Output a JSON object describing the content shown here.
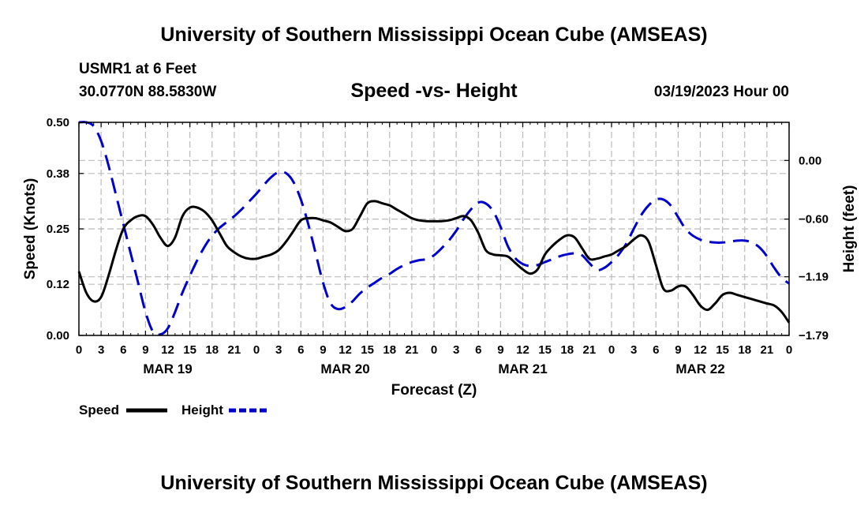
{
  "page": {
    "title": "University of Southern Mississippi Ocean Cube (AMSEAS)",
    "footer_title": "University of Southern Mississippi Ocean Cube (AMSEAS)",
    "station": "USMR1 at 6 Feet",
    "location": "30.0770N  88.5830W",
    "subtitle": "Speed -vs- Height",
    "datetime": "03/19/2023 Hour 00"
  },
  "colors": {
    "speed": "#000000",
    "height": "#0000cc",
    "grid": "#bbbbbb"
  },
  "chart_data": {
    "type": "line",
    "title": "Speed -vs- Height",
    "xlabel": "Forecast (Z)",
    "ylabel": "Speed (Knots)",
    "y2label": "Height (feet)",
    "xlim": [
      0,
      96
    ],
    "ylim": [
      0,
      0.5
    ],
    "y2lim": [
      -1.79,
      0.39
    ],
    "y_ticks": [
      0.0,
      0.12,
      0.25,
      0.38,
      0.5
    ],
    "y_tick_labels": [
      "0.00",
      "0.12",
      "0.25",
      "0.38",
      "0.50"
    ],
    "y2_ticks": [
      -1.79,
      -1.19,
      -0.6,
      0.0
    ],
    "y2_tick_labels": [
      "−1.79",
      "−1.19",
      "−0.60",
      "0.00"
    ],
    "x_ticks": [
      0,
      3,
      6,
      9,
      12,
      15,
      18,
      21,
      24,
      27,
      30,
      33,
      36,
      39,
      42,
      45,
      48,
      51,
      54,
      57,
      60,
      63,
      66,
      69,
      72,
      75,
      78,
      81,
      84,
      87,
      90,
      93,
      96
    ],
    "x_tick_labels": [
      "0",
      "3",
      "6",
      "9",
      "12",
      "15",
      "18",
      "21",
      "0",
      "3",
      "6",
      "9",
      "12",
      "15",
      "18",
      "21",
      "0",
      "3",
      "6",
      "9",
      "12",
      "15",
      "18",
      "21",
      "0",
      "3",
      "6",
      "9",
      "12",
      "15",
      "18",
      "21",
      "0"
    ],
    "day_labels": [
      {
        "x": 12,
        "label": "MAR 19"
      },
      {
        "x": 36,
        "label": "MAR 20"
      },
      {
        "x": 60,
        "label": "MAR 21"
      },
      {
        "x": 84,
        "label": "MAR 22"
      }
    ],
    "grid": true,
    "series": [
      {
        "name": "Speed",
        "axis": "left",
        "style": "solid",
        "color": "#000000",
        "x": [
          0,
          1,
          2,
          3,
          4,
          5,
          6,
          7,
          8,
          9,
          10,
          11,
          12,
          13,
          14,
          15,
          16,
          17,
          18,
          19,
          20,
          21,
          22,
          23,
          24,
          25,
          26,
          27,
          28,
          29,
          30,
          31,
          32,
          33,
          34,
          35,
          36,
          37,
          38,
          39,
          40,
          41,
          42,
          43,
          44,
          45,
          46,
          47,
          48,
          49,
          50,
          51,
          52,
          53,
          54,
          55,
          56,
          57,
          58,
          59,
          60,
          61,
          62,
          63,
          64,
          65,
          66,
          67,
          68,
          69,
          70,
          71,
          72,
          73,
          74,
          75,
          76,
          77,
          78,
          79,
          80,
          81,
          82,
          83,
          84,
          85,
          86,
          87,
          88,
          89,
          90,
          91,
          92,
          93,
          94,
          95,
          96
        ],
        "values": [
          0.15,
          0.1,
          0.08,
          0.09,
          0.14,
          0.2,
          0.25,
          0.27,
          0.28,
          0.28,
          0.26,
          0.23,
          0.21,
          0.23,
          0.28,
          0.3,
          0.3,
          0.29,
          0.27,
          0.24,
          0.21,
          0.195,
          0.185,
          0.18,
          0.18,
          0.185,
          0.19,
          0.2,
          0.22,
          0.245,
          0.27,
          0.275,
          0.275,
          0.27,
          0.265,
          0.255,
          0.245,
          0.25,
          0.28,
          0.31,
          0.315,
          0.31,
          0.305,
          0.295,
          0.285,
          0.275,
          0.27,
          0.268,
          0.268,
          0.268,
          0.27,
          0.275,
          0.28,
          0.27,
          0.24,
          0.2,
          0.19,
          0.188,
          0.185,
          0.17,
          0.155,
          0.145,
          0.155,
          0.19,
          0.21,
          0.225,
          0.235,
          0.23,
          0.205,
          0.18,
          0.18,
          0.185,
          0.19,
          0.2,
          0.21,
          0.225,
          0.235,
          0.22,
          0.165,
          0.11,
          0.105,
          0.115,
          0.115,
          0.095,
          0.07,
          0.06,
          0.075,
          0.095,
          0.1,
          0.095,
          0.09,
          0.085,
          0.08,
          0.075,
          0.07,
          0.055,
          0.03
        ]
      },
      {
        "name": "Height",
        "axis": "right",
        "style": "dashed",
        "color": "#0000cc",
        "x": [
          0,
          1,
          2,
          3,
          4,
          5,
          6,
          7,
          8,
          9,
          10,
          11,
          12,
          13,
          14,
          15,
          16,
          17,
          18,
          19,
          20,
          21,
          22,
          23,
          24,
          25,
          26,
          27,
          28,
          29,
          30,
          31,
          32,
          33,
          34,
          35,
          36,
          37,
          38,
          39,
          40,
          41,
          42,
          43,
          44,
          45,
          46,
          47,
          48,
          49,
          50,
          51,
          52,
          53,
          54,
          55,
          56,
          57,
          58,
          59,
          60,
          61,
          62,
          63,
          64,
          65,
          66,
          67,
          68,
          69,
          70,
          71,
          72,
          73,
          74,
          75,
          76,
          77,
          78,
          79,
          80,
          81,
          82,
          83,
          84,
          85,
          86,
          87,
          88,
          89,
          90,
          91,
          92,
          93,
          94,
          95,
          96
        ],
        "values": [
          0.39,
          0.39,
          0.35,
          0.2,
          -0.05,
          -0.35,
          -0.65,
          -0.95,
          -1.25,
          -1.55,
          -1.75,
          -1.78,
          -1.72,
          -1.55,
          -1.35,
          -1.18,
          -1.02,
          -0.88,
          -0.77,
          -0.69,
          -0.63,
          -0.57,
          -0.5,
          -0.42,
          -0.34,
          -0.25,
          -0.17,
          -0.12,
          -0.13,
          -0.22,
          -0.4,
          -0.65,
          -0.95,
          -1.25,
          -1.46,
          -1.52,
          -1.5,
          -1.44,
          -1.36,
          -1.3,
          -1.25,
          -1.2,
          -1.16,
          -1.11,
          -1.07,
          -1.04,
          -1.02,
          -1.01,
          -0.97,
          -0.9,
          -0.82,
          -0.72,
          -0.6,
          -0.5,
          -0.43,
          -0.44,
          -0.52,
          -0.68,
          -0.88,
          -1.0,
          -1.06,
          -1.08,
          -1.07,
          -1.04,
          -1.01,
          -0.98,
          -0.96,
          -0.95,
          -0.97,
          -1.05,
          -1.12,
          -1.1,
          -1.04,
          -0.96,
          -0.85,
          -0.7,
          -0.56,
          -0.46,
          -0.4,
          -0.4,
          -0.46,
          -0.58,
          -0.7,
          -0.77,
          -0.81,
          -0.83,
          -0.84,
          -0.84,
          -0.83,
          -0.82,
          -0.82,
          -0.84,
          -0.89,
          -0.98,
          -1.1,
          -1.2,
          -1.26
        ]
      }
    ]
  }
}
